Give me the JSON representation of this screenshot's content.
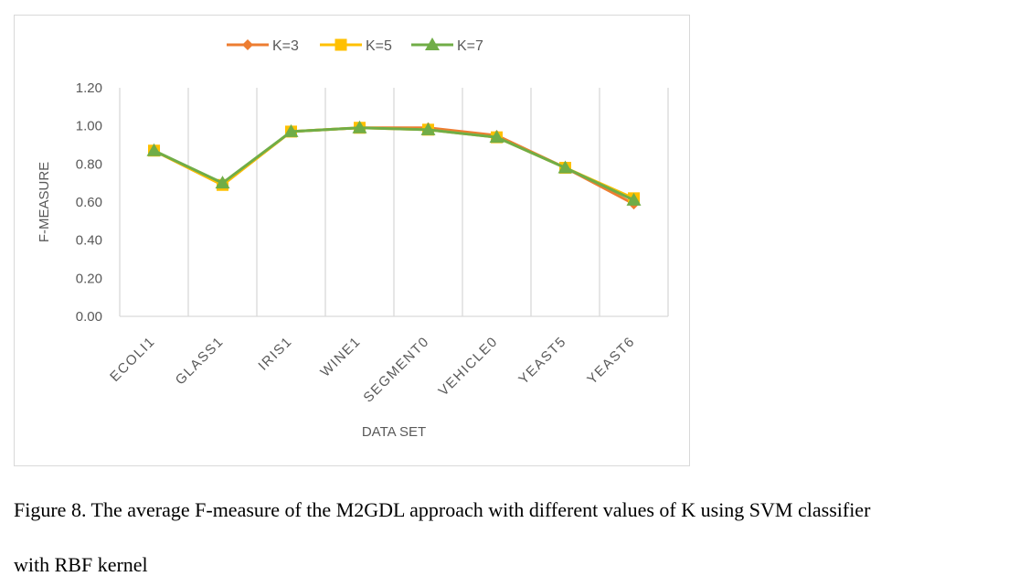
{
  "chart_data": {
    "type": "line",
    "categories": [
      "ECOLI1",
      "GLASS1",
      "IRIS1",
      "WINE1",
      "SEGMENT0",
      "VEHICLE0",
      "YEAST5",
      "YEAST6"
    ],
    "series": [
      {
        "name": "K=3",
        "color": "#ED7D31",
        "marker": "diamond",
        "values": [
          0.87,
          0.69,
          0.97,
          0.99,
          0.99,
          0.95,
          0.78,
          0.59
        ]
      },
      {
        "name": "K=5",
        "color": "#FFC000",
        "marker": "square",
        "values": [
          0.87,
          0.69,
          0.97,
          0.99,
          0.98,
          0.94,
          0.78,
          0.62
        ]
      },
      {
        "name": "K=7",
        "color": "#70AD47",
        "marker": "triangle",
        "values": [
          0.87,
          0.7,
          0.97,
          0.99,
          0.98,
          0.94,
          0.78,
          0.61
        ]
      }
    ],
    "yticks": [
      "0.00",
      "0.20",
      "0.40",
      "0.60",
      "0.80",
      "1.00",
      "1.20"
    ],
    "ylim": [
      0,
      1.2
    ],
    "xlabel": "DATA SET",
    "ylabel": "F-MEASURE",
    "legend_position": "top",
    "grid": "vertical"
  },
  "caption": {
    "line1": "Figure 8. The average F-measure of the M2GDL approach with different values of K using SVM classifier",
    "line2": "with RBF kernel"
  }
}
